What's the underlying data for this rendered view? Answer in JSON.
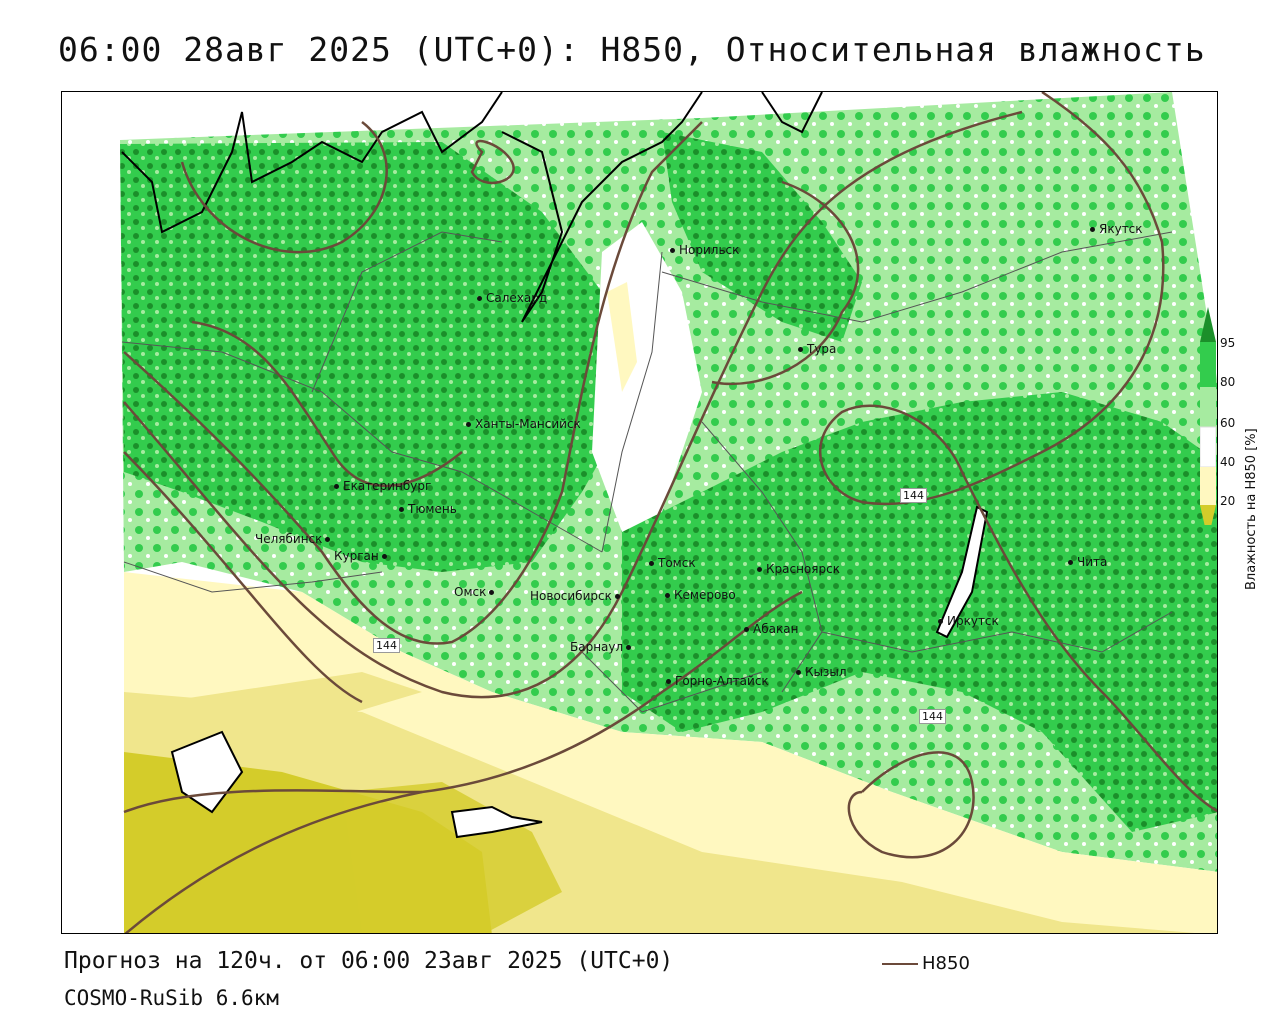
{
  "title": "06:00 28авг 2025 (UTC+0): H850, Относительная влажность",
  "colors": {
    "humid_95": "#1b8f2a",
    "humid_80": "#33cc4d",
    "humid_60": "#a6eba0",
    "dry_40": "#fff8c0",
    "dry_20": "#f0e68c",
    "dry_0": "#d4cc2a",
    "contour": "#6b4a3a",
    "coast": "#000000",
    "borders": "#555555"
  },
  "cities": [
    {
      "name": "Салехард"
    },
    {
      "name": "Норильск"
    },
    {
      "name": "Якутск"
    },
    {
      "name": "Тура"
    },
    {
      "name": "Ханты-Мансийск"
    },
    {
      "name": "Екатеринбург"
    },
    {
      "name": "Тюмень"
    },
    {
      "name": "Челябинск"
    },
    {
      "name": "Курган"
    },
    {
      "name": "Омск"
    },
    {
      "name": "Новосибирск"
    },
    {
      "name": "Томск"
    },
    {
      "name": "Кемерово"
    },
    {
      "name": "Красноярск"
    },
    {
      "name": "Барнаул"
    },
    {
      "name": "Абакан"
    },
    {
      "name": "Кызыл"
    },
    {
      "name": "Горно-Алтайск"
    },
    {
      "name": "Иркутск"
    },
    {
      "name": "Чита"
    }
  ],
  "contour_labels": [
    "144",
    "144",
    "144"
  ],
  "legend": {
    "title": "Влажность на H850 [%]",
    "ticks": [
      "95",
      "80",
      "60",
      "40",
      "20"
    ]
  },
  "footer": {
    "forecast": "Прогноз на 120ч. от 06:00 23авг 2025 (UTC+0)",
    "model": "COSMO-RuSib 6.6км",
    "line_legend": "H850"
  }
}
